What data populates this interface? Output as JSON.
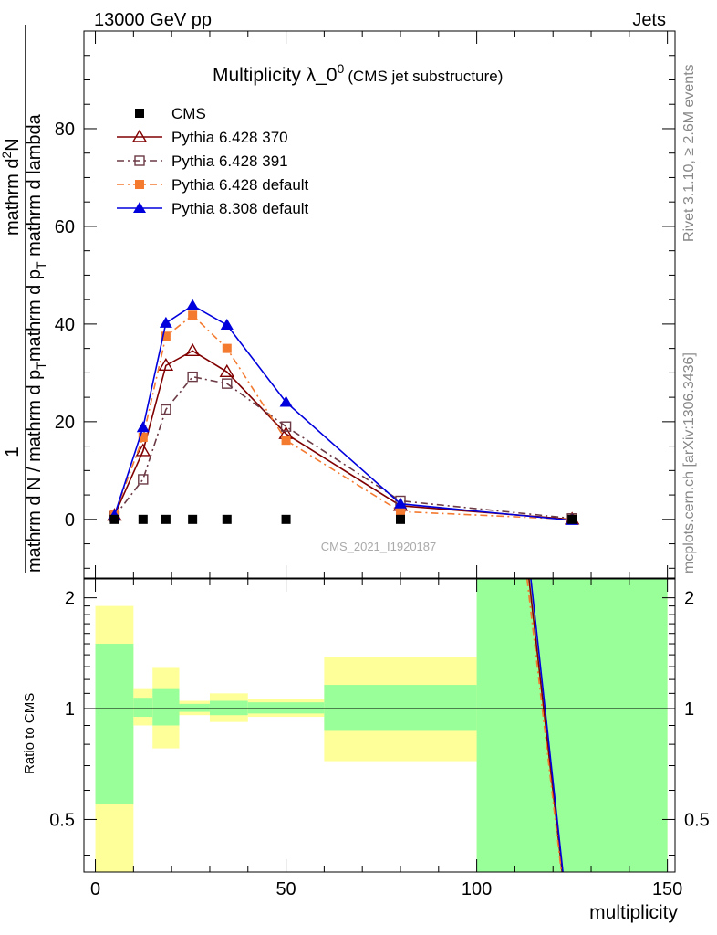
{
  "header": {
    "left_title": "13000 GeV pp",
    "right_title": "Jets"
  },
  "side_labels": {
    "rivet": "Rivet 3.1.10, ≥ 2.6M events",
    "mcplots": "mcplots.cern.ch [arXiv:1306.3436]"
  },
  "watermark": "CMS_2021_I1920187",
  "chart_data": [
    {
      "type": "line",
      "title_main": "Multiplicity λ_0",
      "title_superscript": "0",
      "title_suffix": "(CMS jet substructure)",
      "ylabel_numerator": "1",
      "ylabel_denominator": "mathrm d N / mathrm d p",
      "ylabel_denominator_sub": "T",
      "ylabel_numerator_right": "mathrm d",
      "ylabel_numerator_right_sup": "2",
      "ylabel_numerator_right_tail": "N",
      "ylabel_denominator_right": "mathrm d p",
      "ylabel_denominator_right_sub": "T",
      "ylabel_denominator_right_tail": " mathrm d lambda",
      "xlim": [
        -3,
        152
      ],
      "ylim": [
        -12,
        100
      ],
      "yticks": [
        0,
        20,
        40,
        60,
        80
      ],
      "xticks": [
        0,
        50,
        100,
        150
      ],
      "legend_position": "top-left",
      "series": [
        {
          "name": "CMS",
          "color": "#000000",
          "marker": "square-filled",
          "line": "none",
          "x": [
            5,
            12.5,
            18.5,
            25.5,
            34.5,
            50,
            80,
            125
          ],
          "y": [
            0,
            0,
            0,
            0,
            0,
            0,
            0,
            0
          ]
        },
        {
          "name": "Pythia 6.428 370",
          "color": "#800000",
          "marker": "triangle-open",
          "line": "solid",
          "x": [
            5,
            12.5,
            18.5,
            25.5,
            34.5,
            50,
            80,
            125
          ],
          "y": [
            0.8,
            14,
            31.5,
            34.5,
            30.2,
            17.5,
            2.8,
            0
          ]
        },
        {
          "name": "Pythia 6.428 391",
          "color": "#6b3a45",
          "marker": "square-open",
          "line": "dashdot",
          "x": [
            5,
            12.5,
            18.5,
            25.5,
            34.5,
            50,
            80,
            125
          ],
          "y": [
            0.6,
            8.2,
            22.5,
            29.2,
            27.8,
            19,
            3.8,
            0.2
          ]
        },
        {
          "name": "Pythia 6.428 default",
          "color": "#f47a30",
          "marker": "square-filled",
          "line": "dashdot",
          "x": [
            5,
            12.5,
            18.5,
            25.5,
            34.5,
            50,
            80,
            125
          ],
          "y": [
            1.0,
            16.8,
            37.5,
            41.8,
            35,
            16.2,
            1.6,
            0
          ]
        },
        {
          "name": "Pythia 8.308 default",
          "color": "#0000dd",
          "marker": "triangle-filled",
          "line": "solid",
          "x": [
            5,
            12.5,
            18.5,
            25.5,
            34.5,
            50,
            80,
            125
          ],
          "y": [
            0.8,
            18.8,
            40.2,
            43.8,
            39.8,
            24,
            3.2,
            -0.2
          ]
        }
      ]
    },
    {
      "type": "area",
      "ylabel": "Ratio to CMS",
      "xlabel": "multiplicity",
      "xlim": [
        -3,
        152
      ],
      "ylim": [
        0.36,
        2.25
      ],
      "scale": "log",
      "yticks": [
        0.5,
        1,
        2
      ],
      "xticks": [
        0,
        50,
        100,
        150
      ],
      "reference_line": 1,
      "bands": [
        {
          "x0": 0,
          "x1": 10,
          "green": [
            0.55,
            1.5
          ],
          "yellow": [
            0.36,
            1.9
          ]
        },
        {
          "x0": 10,
          "x1": 15,
          "green": [
            0.95,
            1.07
          ],
          "yellow": [
            0.9,
            1.13
          ]
        },
        {
          "x0": 15,
          "x1": 22,
          "green": [
            0.9,
            1.13
          ],
          "yellow": [
            0.78,
            1.29
          ]
        },
        {
          "x0": 22,
          "x1": 30,
          "green": [
            0.98,
            1.03
          ],
          "yellow": [
            0.96,
            1.05
          ]
        },
        {
          "x0": 30,
          "x1": 40,
          "green": [
            0.96,
            1.05
          ],
          "yellow": [
            0.92,
            1.1
          ]
        },
        {
          "x0": 40,
          "x1": 60,
          "green": [
            0.97,
            1.04
          ],
          "yellow": [
            0.95,
            1.06
          ]
        },
        {
          "x0": 60,
          "x1": 100,
          "green": [
            0.87,
            1.16
          ],
          "yellow": [
            0.72,
            1.38
          ]
        },
        {
          "x0": 100,
          "x1": 150,
          "green": [
            0.36,
            2.25
          ],
          "yellow": [
            0.36,
            2.25
          ]
        }
      ],
      "ratio_lines": [
        {
          "color": "#800000",
          "x": [
            113.7,
            122.4
          ],
          "y": [
            2.25,
            0.36
          ]
        },
        {
          "color": "#f47a30",
          "x": [
            113.2,
            122.2
          ],
          "y": [
            2.25,
            0.36
          ],
          "dash": true
        },
        {
          "color": "#0000dd",
          "x": [
            114.2,
            122.6
          ],
          "y": [
            2.25,
            0.36
          ]
        }
      ]
    }
  ]
}
